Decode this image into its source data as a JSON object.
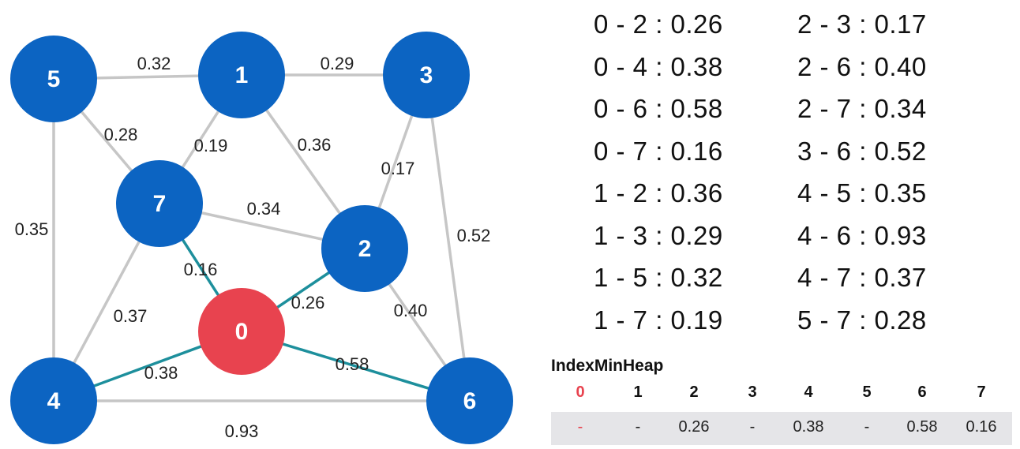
{
  "graph": {
    "nodes": [
      {
        "id": "0",
        "label": "0",
        "highlight": true
      },
      {
        "id": "1",
        "label": "1"
      },
      {
        "id": "2",
        "label": "2"
      },
      {
        "id": "3",
        "label": "3"
      },
      {
        "id": "4",
        "label": "4"
      },
      {
        "id": "5",
        "label": "5"
      },
      {
        "id": "6",
        "label": "6"
      },
      {
        "id": "7",
        "label": "7"
      }
    ],
    "edges": [
      {
        "from": "5",
        "to": "1",
        "weight": "0.32"
      },
      {
        "from": "1",
        "to": "3",
        "weight": "0.29"
      },
      {
        "from": "5",
        "to": "7",
        "weight": "0.28"
      },
      {
        "from": "1",
        "to": "7",
        "weight": "0.19"
      },
      {
        "from": "1",
        "to": "2",
        "weight": "0.36"
      },
      {
        "from": "3",
        "to": "2",
        "weight": "0.17"
      },
      {
        "from": "5",
        "to": "4",
        "weight": "0.35"
      },
      {
        "from": "7",
        "to": "2",
        "weight": "0.34"
      },
      {
        "from": "3",
        "to": "6",
        "weight": "0.52"
      },
      {
        "from": "7",
        "to": "0",
        "weight": "0.16",
        "highlight": true
      },
      {
        "from": "0",
        "to": "2",
        "weight": "0.26",
        "highlight": true
      },
      {
        "from": "7",
        "to": "4",
        "weight": "0.37"
      },
      {
        "from": "2",
        "to": "6",
        "weight": "0.40"
      },
      {
        "from": "0",
        "to": "4",
        "weight": "0.38",
        "highlight": true
      },
      {
        "from": "0",
        "to": "6",
        "weight": "0.58",
        "highlight": true
      },
      {
        "from": "4",
        "to": "6",
        "weight": "0.93"
      }
    ],
    "colors": {
      "node": "#0c64c2",
      "source_node": "#e8434f",
      "edge": "#c6c6c6",
      "highlight_edge": "#1d8f9c"
    }
  },
  "edge_list": {
    "left": [
      "0 - 2 : 0.26",
      "0 - 4 : 0.38",
      "0 - 6 : 0.58",
      "0 - 7 : 0.16",
      "1 - 2 : 0.36",
      "1 - 3 : 0.29",
      "1 - 5 : 0.32",
      "1 - 7 : 0.19"
    ],
    "right": [
      "2 - 3 : 0.17",
      "2 - 6 : 0.40",
      "2 - 7 : 0.34",
      "3 - 6 : 0.52",
      "4 - 5 : 0.35",
      "4 - 6 : 0.93",
      "4 - 7 : 0.37",
      "5 - 7 : 0.28"
    ]
  },
  "heap": {
    "title": "IndexMinHeap",
    "indices": [
      "0",
      "1",
      "2",
      "3",
      "4",
      "5",
      "6",
      "7"
    ],
    "values": [
      "-",
      "-",
      "0.26",
      "-",
      "0.38",
      "-",
      "0.58",
      "0.16"
    ]
  }
}
